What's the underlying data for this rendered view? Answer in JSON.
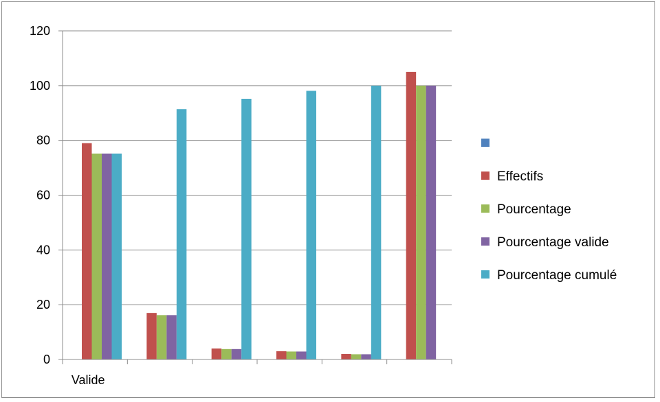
{
  "chart_data": {
    "type": "bar",
    "categories": [
      "Valide",
      "",
      "",
      "",
      "",
      ""
    ],
    "series": [
      {
        "name": "",
        "color": "#4f81bd",
        "values": [
          0,
          0,
          0,
          0,
          0,
          0
        ]
      },
      {
        "name": "Effectifs",
        "color": "#c0504d",
        "values": [
          79,
          17,
          4,
          3,
          2,
          105
        ]
      },
      {
        "name": "Pourcentage",
        "color": "#9bbb59",
        "values": [
          75.2,
          16.2,
          3.8,
          2.9,
          1.9,
          100
        ]
      },
      {
        "name": "Pourcentage valide",
        "color": "#8064a2",
        "values": [
          75.2,
          16.2,
          3.8,
          2.9,
          1.9,
          100
        ]
      },
      {
        "name": "Pourcentage cumulé",
        "color": "#4bacc6",
        "values": [
          75.2,
          91.4,
          95.2,
          98.1,
          100,
          null
        ]
      }
    ],
    "ylim": [
      0,
      120
    ],
    "yticks": [
      "0",
      "20",
      "40",
      "60",
      "80",
      "100",
      "120"
    ],
    "grid": true,
    "legend_position": "right"
  }
}
